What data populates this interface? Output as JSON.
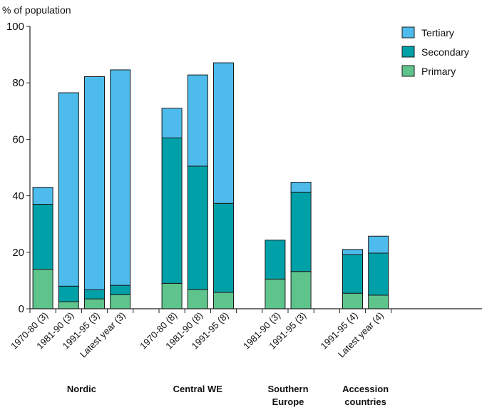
{
  "chart_data": {
    "type": "bar",
    "stacked": true,
    "ylabel": "% of population",
    "ylim": [
      0,
      100
    ],
    "yticks": [
      0,
      20,
      40,
      60,
      80,
      100
    ],
    "grid": false,
    "legend_position": "top-right",
    "series": [
      {
        "name": "Primary",
        "color": "#5ec48c",
        "values": [
          14,
          2.5,
          3.5,
          5,
          null,
          9,
          6.8,
          5.8,
          null,
          10.5,
          13.2,
          null,
          5.5,
          4.8
        ]
      },
      {
        "name": "Secondary",
        "color": "#00a0a8",
        "values": [
          23,
          5.5,
          3.2,
          3.3,
          null,
          51.5,
          43.7,
          31.5,
          null,
          13.8,
          28.1,
          null,
          13.7,
          14.9
        ]
      },
      {
        "name": "Tertiary",
        "color": "#4dbcec",
        "values": [
          6,
          68.5,
          75.5,
          76.3,
          null,
          10.5,
          32.3,
          49.8,
          null,
          0,
          3.5,
          null,
          1.8,
          6
        ]
      }
    ],
    "categories": [
      "1970-80 (3)",
      "1981-90 (3)",
      "1991-95 (3)",
      "Latest year (3)",
      "",
      "1970-80 (8)",
      "1981-90 (8)",
      "1991-95 (8)",
      "",
      "1981-90 (3)",
      "1991-95 (3)",
      "",
      "1991-95 (4)",
      "Latest year (4)"
    ],
    "groups": [
      {
        "lines": [
          "Nordic"
        ],
        "first": 0,
        "last": 3
      },
      {
        "lines": [
          "Central WE"
        ],
        "first": 5,
        "last": 7
      },
      {
        "lines": [
          "Southern",
          "Europe"
        ],
        "first": 9,
        "last": 10
      },
      {
        "lines": [
          "Accession",
          "countries"
        ],
        "first": 12,
        "last": 13
      }
    ]
  }
}
